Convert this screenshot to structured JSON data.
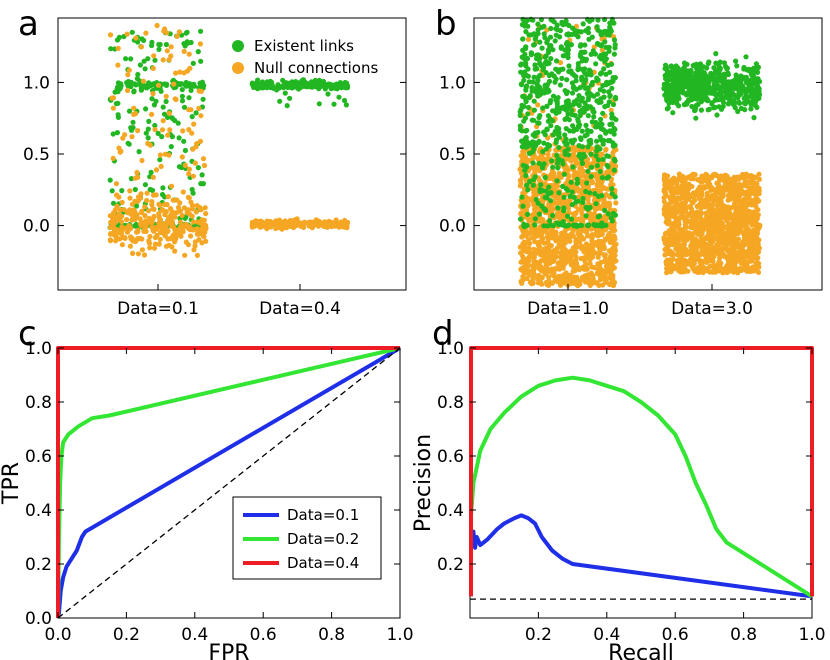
{
  "colors": {
    "green": "#22b722",
    "orange": "#f5a623",
    "blue": "#1f2fe8",
    "lime": "#33e633",
    "red": "#ee1c24",
    "black": "#000000"
  },
  "chart_data": [
    {
      "panel": "a",
      "type": "scatter",
      "categories": [
        "Data=0.1",
        "Data=0.4"
      ],
      "yticks": [
        "0.0",
        "0.5",
        "1.0"
      ],
      "ylim": [
        -0.45,
        1.45
      ],
      "legend": {
        "placement": "top-right",
        "entries": [
          "Existent links",
          "Null connections"
        ]
      },
      "series": [
        {
          "name": "Existent links",
          "color": "green",
          "groups": [
            {
              "category": "Data=0.1",
              "clusters": [
                {
                  "center": 0.98,
                  "spread": 0.02,
                  "n": 70
                },
                {
                  "center": 0.0,
                  "spread": 0.01,
                  "n": 60
                },
                {
                  "uniform": [
                    0.0,
                    1.4
                  ],
                  "n": 170
                }
              ]
            },
            {
              "category": "Data=0.4",
              "clusters": [
                {
                  "center": 0.98,
                  "spread": 0.02,
                  "n": 160
                },
                {
                  "uniform": [
                    0.82,
                    0.96
                  ],
                  "n": 10
                }
              ]
            }
          ]
        },
        {
          "name": "Null connections",
          "color": "orange",
          "groups": [
            {
              "category": "Data=0.1",
              "clusters": [
                {
                  "center": 0.0,
                  "spread": 0.12,
                  "n": 280
                },
                {
                  "uniform": [
                    0.1,
                    1.4
                  ],
                  "n": 110
                }
              ]
            },
            {
              "category": "Data=0.4",
              "clusters": [
                {
                  "center": 0.01,
                  "spread": 0.02,
                  "n": 200
                }
              ]
            }
          ]
        }
      ]
    },
    {
      "panel": "b",
      "type": "scatter",
      "categories": [
        "Data=1.0",
        "Data=3.0"
      ],
      "yticks": [
        "0.0",
        "0.5",
        "1.0"
      ],
      "ylim": [
        -0.45,
        1.45
      ],
      "series": [
        {
          "name": "Null connections",
          "color": "orange",
          "groups": [
            {
              "category": "Data=1.0",
              "clusters": [
                {
                  "uniform": [
                    -0.42,
                    0.55
                  ],
                  "n": 1300
                },
                {
                  "uniform": [
                    0.5,
                    1.4
                  ],
                  "n": 60
                }
              ]
            },
            {
              "category": "Data=3.0",
              "clusters": [
                {
                  "uniform": [
                    -0.33,
                    0.36
                  ],
                  "n": 1300
                }
              ]
            }
          ]
        },
        {
          "name": "Existent links",
          "color": "green",
          "groups": [
            {
              "category": "Data=1.0",
              "clusters": [
                {
                  "uniform": [
                    0.55,
                    1.45
                  ],
                  "n": 520
                },
                {
                  "uniform": [
                    0.0,
                    0.6
                  ],
                  "n": 160
                },
                {
                  "center": 0.0,
                  "spread": 0.005,
                  "n": 30
                }
              ]
            },
            {
              "category": "Data=3.0",
              "clusters": [
                {
                  "center": 0.98,
                  "spread": 0.11,
                  "n": 600
                }
              ]
            }
          ]
        }
      ]
    },
    {
      "panel": "c",
      "type": "line",
      "xlabel": "FPR",
      "ylabel": "TPR",
      "xlim": [
        0,
        1
      ],
      "ylim": [
        0,
        1
      ],
      "xticks": [
        "0.0",
        "0.2",
        "0.4",
        "0.6",
        "0.8",
        "1.0"
      ],
      "yticks": [
        "0.0",
        "0.2",
        "0.4",
        "0.6",
        "0.8",
        "1.0"
      ],
      "legend": {
        "placement": "lower-right",
        "entries": [
          "Data=0.1",
          "Data=0.2",
          "Data=0.4"
        ]
      },
      "series": [
        {
          "name": "Data=0.1",
          "color": "blue",
          "x": [
            0,
            0.003,
            0.008,
            0.015,
            0.025,
            0.04,
            0.055,
            0.07,
            0.08,
            1.0
          ],
          "y": [
            0,
            0.02,
            0.1,
            0.15,
            0.19,
            0.22,
            0.25,
            0.3,
            0.32,
            1.0
          ]
        },
        {
          "name": "Data=0.2",
          "color": "lime",
          "x": [
            0,
            0.003,
            0.006,
            0.01,
            0.015,
            0.03,
            0.06,
            0.1,
            0.15,
            1.0
          ],
          "y": [
            0,
            0.3,
            0.5,
            0.6,
            0.65,
            0.68,
            0.71,
            0.74,
            0.75,
            1.0
          ]
        },
        {
          "name": "Data=0.4",
          "color": "red",
          "x": [
            0,
            0,
            0.008,
            1.0
          ],
          "y": [
            0,
            1.0,
            1.0,
            1.0
          ]
        },
        {
          "name": "chance",
          "color": "black",
          "dashed": true,
          "x": [
            0,
            1
          ],
          "y": [
            0,
            1
          ]
        }
      ]
    },
    {
      "panel": "d",
      "type": "line",
      "xlabel": "Recall",
      "ylabel": "Precision",
      "xlim": [
        0,
        1
      ],
      "ylim": [
        0,
        1
      ],
      "xticks": [
        "0.2",
        "0.4",
        "0.6",
        "0.8",
        "1.0"
      ],
      "yticks": [
        "0.2",
        "0.4",
        "0.6",
        "0.8",
        "1.0"
      ],
      "series": [
        {
          "name": "Data=0.1",
          "color": "blue",
          "x": [
            0.005,
            0.01,
            0.015,
            0.02,
            0.03,
            0.05,
            0.08,
            0.1,
            0.13,
            0.15,
            0.17,
            0.19,
            0.21,
            0.24,
            0.27,
            0.3,
            1.0
          ],
          "y": [
            0.27,
            0.32,
            0.26,
            0.3,
            0.27,
            0.29,
            0.33,
            0.35,
            0.37,
            0.38,
            0.37,
            0.35,
            0.3,
            0.25,
            0.22,
            0.2,
            0.08
          ]
        },
        {
          "name": "Data=0.2",
          "color": "lime",
          "x": [
            0.003,
            0.01,
            0.03,
            0.06,
            0.1,
            0.15,
            0.2,
            0.25,
            0.3,
            0.35,
            0.4,
            0.45,
            0.5,
            0.55,
            0.6,
            0.63,
            0.66,
            0.69,
            0.72,
            0.75,
            0.8,
            1.0
          ],
          "y": [
            0.38,
            0.5,
            0.62,
            0.7,
            0.76,
            0.82,
            0.86,
            0.88,
            0.89,
            0.88,
            0.86,
            0.84,
            0.8,
            0.75,
            0.68,
            0.6,
            0.5,
            0.42,
            0.33,
            0.28,
            0.24,
            0.08
          ]
        },
        {
          "name": "Data=0.4",
          "color": "red",
          "x": [
            0.003,
            0.003,
            1.0,
            1.0
          ],
          "y": [
            0.08,
            1.0,
            1.0,
            0.08
          ]
        },
        {
          "name": "baseline",
          "color": "black",
          "dashed": true,
          "x": [
            0,
            1
          ],
          "y": [
            0.07,
            0.07
          ]
        }
      ]
    }
  ]
}
